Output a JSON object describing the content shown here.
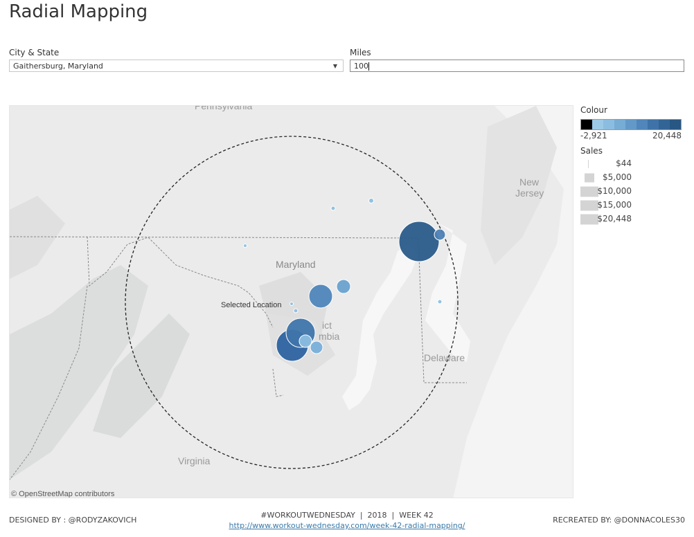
{
  "title": "Radial Mapping",
  "filters": {
    "city_label": "City & State",
    "city_value": "Gaithersburg, Maryland",
    "miles_label": "Miles",
    "miles_value": "100"
  },
  "map": {
    "labels": {
      "pennsylvania": "Pennsylvania",
      "new_jersey_1": "New",
      "new_jersey_2": "Jersey",
      "maryland": "Maryland",
      "dc_1": "ict",
      "dc_2": "mbia",
      "delaware": "Delaware",
      "virginia": "Virginia",
      "selected": "Selected Location"
    },
    "attribution": "© OpenStreetMap contributors"
  },
  "legend": {
    "colour_title": "Colour",
    "colour_min": "-2,921",
    "colour_max": "20,448",
    "colour_steps": [
      "#000000",
      "#9ccae6",
      "#8bbde0",
      "#77acd5",
      "#6399c8",
      "#5086b9",
      "#3f73a8",
      "#326596",
      "#285784"
    ],
    "sales_title": "Sales",
    "sales_items": [
      "$44",
      "$5,000",
      "$10,000",
      "$15,000",
      "$20,448"
    ]
  },
  "footer": {
    "designed": "DESIGNED BY : @RODYZAKOVICH",
    "center": "#WORKOUTWEDNESDAY  |  2018  |  WEEK 42",
    "url": "http://www.workout-wednesday.com/week-42-radial-mapping/",
    "recreated": "RECREATED BY: @DONNACOLES30"
  }
}
